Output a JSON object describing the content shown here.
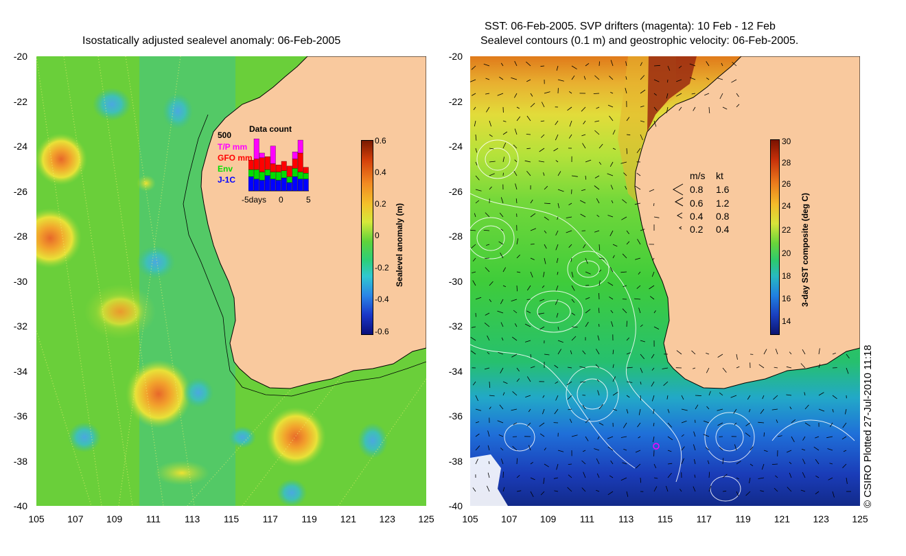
{
  "left_panel": {
    "title": "Isostatically adjusted sealevel anomaly: 06-Feb-2005",
    "x_ticks": [
      "105",
      "107",
      "109",
      "111",
      "113",
      "115",
      "117",
      "119",
      "121",
      "123",
      "125"
    ],
    "y_ticks": [
      "-20",
      "-22",
      "-24",
      "-26",
      "-28",
      "-30",
      "-32",
      "-34",
      "-36",
      "-38",
      "-40"
    ],
    "colorbar": {
      "title": "Sealevel anomaly (m)",
      "ticks": [
        "0.6",
        "0.4",
        "0.2",
        "0",
        "-0.2",
        "-0.4",
        "-0.6"
      ]
    },
    "histogram": {
      "title": "Data count",
      "max_label": "500",
      "legend": [
        "T/P mm",
        "GFO mm",
        "Env",
        "J-1C"
      ],
      "legend_colors": [
        "#ff00ff",
        "#ff0000",
        "#00dd00",
        "#0000ff"
      ],
      "x_labels": [
        "-5days",
        "0",
        "5"
      ],
      "counts": [
        {
          "jc": 120,
          "env": 60,
          "gfo": 80,
          "tp": 0
        },
        {
          "jc": 100,
          "env": 80,
          "gfo": 90,
          "tp": 170
        },
        {
          "jc": 90,
          "env": 70,
          "gfo": 120,
          "tp": 40
        },
        {
          "jc": 130,
          "env": 50,
          "gfo": 110,
          "tp": 0
        },
        {
          "jc": 100,
          "env": 60,
          "gfo": 70,
          "tp": 150
        },
        {
          "jc": 90,
          "env": 70,
          "gfo": 60,
          "tp": 0
        },
        {
          "jc": 110,
          "env": 60,
          "gfo": 80,
          "tp": 0
        },
        {
          "jc": 70,
          "env": 50,
          "gfo": 90,
          "tp": 0
        },
        {
          "jc": 120,
          "env": 70,
          "gfo": 80,
          "tp": 60
        },
        {
          "jc": 100,
          "env": 60,
          "gfo": 160,
          "tp": 110
        },
        {
          "jc": 100,
          "env": 50,
          "gfo": 50,
          "tp": 0
        }
      ]
    }
  },
  "right_panel": {
    "title_line1": "SST: 06-Feb-2005. SVP drifters (magenta): 10 Feb - 12 Feb",
    "title_line2": "Sealevel contours (0.1 m) and geostrophic velocity: 06-Feb-2005.",
    "x_ticks": [
      "105",
      "107",
      "109",
      "111",
      "113",
      "115",
      "117",
      "119",
      "121",
      "123",
      "125"
    ],
    "y_ticks": [
      "-20",
      "-22",
      "-24",
      "-26",
      "-28",
      "-30",
      "-32",
      "-34",
      "-36",
      "-38",
      "-40"
    ],
    "colorbar": {
      "title": "3-day SST composite (deg C)",
      "ticks": [
        "30",
        "28",
        "26",
        "24",
        "22",
        "20",
        "18",
        "16",
        "14"
      ]
    },
    "velocity_legend": {
      "headers": [
        "m/s",
        "kt"
      ],
      "rows": [
        {
          "ms": "0.8",
          "kt": "1.6"
        },
        {
          "ms": "0.6",
          "kt": "1.2"
        },
        {
          "ms": "0.4",
          "kt": "0.8"
        },
        {
          "ms": "0.2",
          "kt": "0.4"
        }
      ]
    }
  },
  "credit": "© CSIRO Plotted 27-Jul-2010 11:18",
  "colors": {
    "land": "#f9c99e",
    "sla_background": "#5ecf35",
    "coastline": "#000000"
  }
}
